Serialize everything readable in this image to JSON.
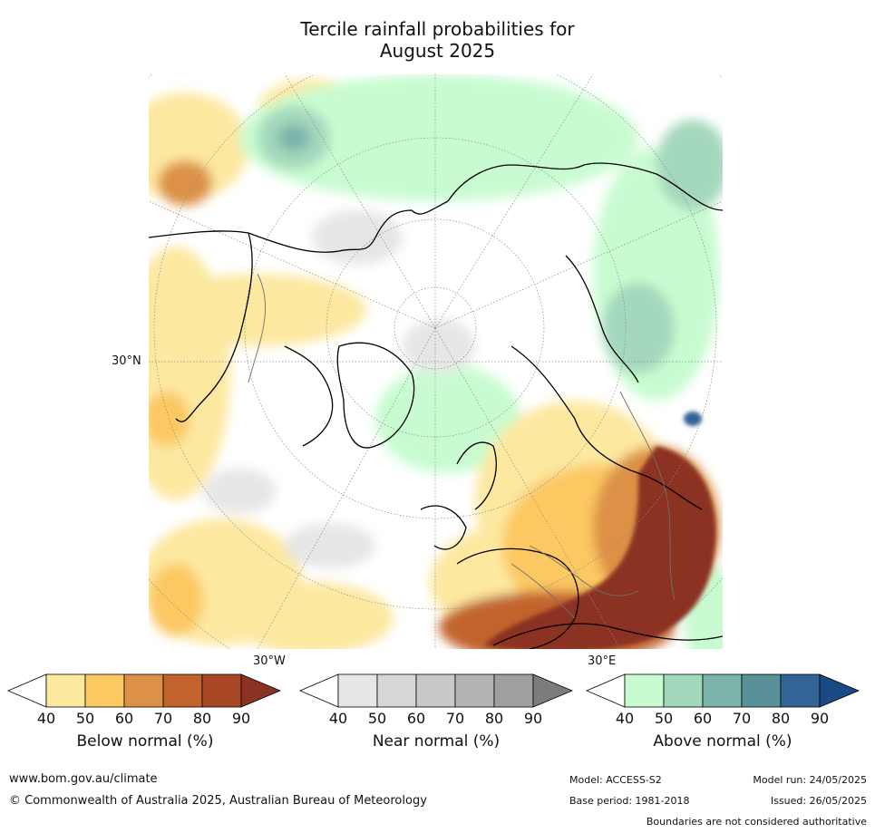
{
  "title_line1": "Tercile rainfall probabilities for",
  "title_line2": "August 2025",
  "map": {
    "projection": "north polar stereographic",
    "lat_label": "30°N",
    "lon_labels": {
      "west": "30°W",
      "east": "30°E"
    }
  },
  "colorbars": [
    {
      "label": "Below normal (%)",
      "ticks": [
        "40",
        "50",
        "60",
        "70",
        "80",
        "90"
      ],
      "colors": [
        "#ffffff",
        "#fde8a0",
        "#fcc862",
        "#dc9146",
        "#c2632e",
        "#a84726",
        "#8c3222"
      ]
    },
    {
      "label": "Near normal (%)",
      "ticks": [
        "40",
        "50",
        "60",
        "70",
        "80",
        "90"
      ],
      "colors": [
        "#ffffff",
        "#e6e6e6",
        "#d7d7d7",
        "#c8c8c8",
        "#b4b4b4",
        "#a0a0a0",
        "#7c7c7c"
      ]
    },
    {
      "label": "Above normal (%)",
      "ticks": [
        "40",
        "50",
        "60",
        "70",
        "80",
        "90"
      ],
      "colors": [
        "#ffffff",
        "#c8fcd0",
        "#a4d8bc",
        "#7ab4aa",
        "#5a9098",
        "#326496",
        "#1a4a86"
      ]
    }
  ],
  "footer": {
    "website": "www.bom.gov.au/climate",
    "copyright": "© Commonwealth of Australia 2025, Australian Bureau of Meteorology",
    "model": "Model: ACCESS-S2",
    "base_period": "Base period: 1981-2018",
    "model_run": "Model run: 24/05/2025",
    "issued": "Issued: 26/05/2025",
    "disclaimer": "Boundaries are not considered authoritative"
  }
}
